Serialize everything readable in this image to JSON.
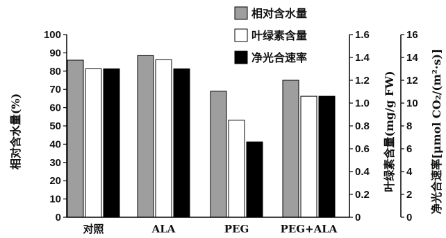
{
  "chart_data": {
    "type": "bar",
    "categories": [
      "对照",
      "ALA",
      "PEG",
      "PEG+ALA"
    ],
    "series": [
      {
        "name": "相对含水量",
        "values": [
          86,
          88.5,
          69,
          75
        ],
        "axis": "left",
        "color": "#9e9e9e"
      },
      {
        "name": "叶绿素含量",
        "values": [
          1.3,
          1.38,
          0.85,
          1.06
        ],
        "axis": "mid",
        "color": "#ffffff"
      },
      {
        "name": "净光合速率",
        "values": [
          13,
          13,
          6.6,
          10.6
        ],
        "axis": "right",
        "color": "#000000"
      }
    ],
    "axes": {
      "left": {
        "label": "相对含水量(%)",
        "ylim": [
          0,
          100
        ],
        "ticks": [
          "0",
          "10",
          "20",
          "30",
          "40",
          "50",
          "60",
          "70",
          "80",
          "90",
          "100"
        ]
      },
      "mid": {
        "label": "叶绿素含量(mg/g FW)",
        "ylim": [
          0,
          1.6
        ],
        "ticks": [
          "0",
          "0.2",
          "0.4",
          "0.6",
          "0.8",
          "1.0",
          "1.2",
          "1.4",
          "1.6"
        ]
      },
      "right": {
        "label": "净光合速率[μmol CO₂/(m²·s)]",
        "ylim": [
          0,
          16
        ],
        "ticks": [
          "0",
          "2",
          "4",
          "6",
          "8",
          "10",
          "12",
          "14",
          "16"
        ]
      }
    },
    "legend_position": "top-right",
    "grid": false
  }
}
